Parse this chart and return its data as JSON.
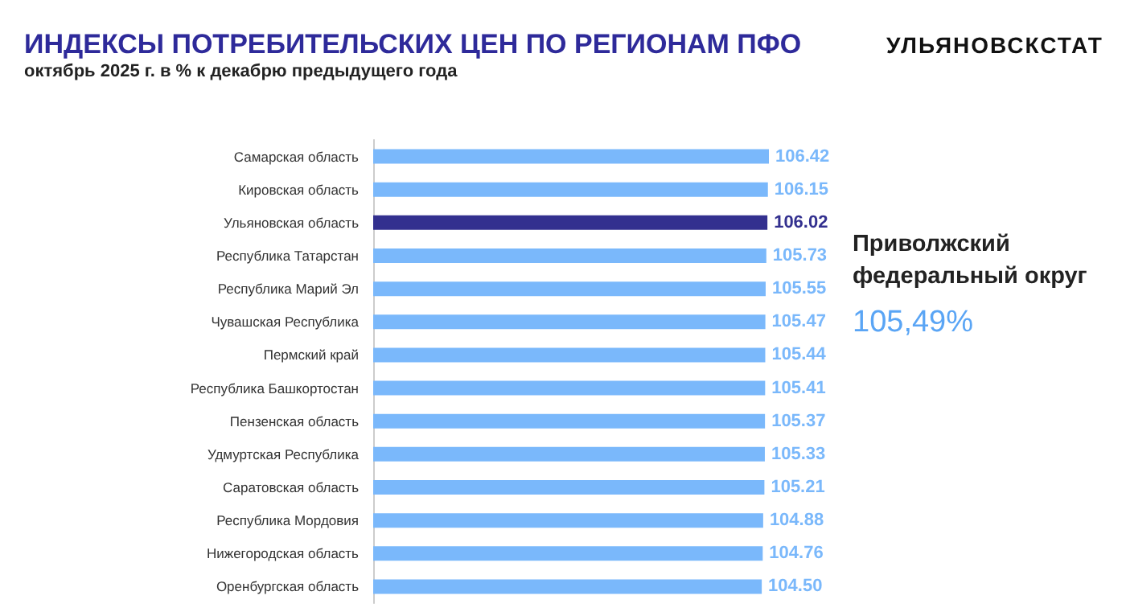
{
  "chart_data": {
    "type": "bar",
    "orientation": "horizontal",
    "title": "ИНДЕКСЫ ПОТРЕБИТЕЛЬСКИХ ЦЕН ПО РЕГИОНАМ ПФО",
    "subtitle": "октябрь 2025 г. в % к декабрю предыдущего года",
    "categories": [
      "Самарская область",
      "Кировская область",
      "Ульяновская область",
      "Республика Татарстан",
      "Республика Марий Эл",
      "Чувашская Республика",
      "Пермский край",
      "Республика Башкортостан",
      "Пензенская область",
      "Удмуртская Республика",
      "Саратовская область",
      "Республика Мордовия",
      "Нижегородская область",
      "Оренбургская область"
    ],
    "values": [
      106.42,
      106.15,
      106.02,
      105.73,
      105.55,
      105.47,
      105.44,
      105.41,
      105.37,
      105.33,
      105.21,
      104.88,
      104.76,
      104.5
    ],
    "value_labels": [
      "106.42",
      "106.15",
      "106.02",
      "105.73",
      "105.55",
      "105.47",
      "105.44",
      "105.41",
      "105.37",
      "105.33",
      "105.21",
      "104.88",
      "104.76",
      "104.50"
    ],
    "colors": [
      "#7ab8fb",
      "#7ab8fb",
      "#33308f",
      "#7ab8fb",
      "#7ab8fb",
      "#7ab8fb",
      "#7ab8fb",
      "#7ab8fb",
      "#7ab8fb",
      "#7ab8fb",
      "#7ab8fb",
      "#7ab8fb",
      "#7ab8fb",
      "#7ab8fb"
    ],
    "tick_labels": "y",
    "grid": false,
    "annotations": [
      "УЛЬЯНОВСКСТАТ",
      "Приволжский федеральный округ",
      "105,49%"
    ]
  }
}
